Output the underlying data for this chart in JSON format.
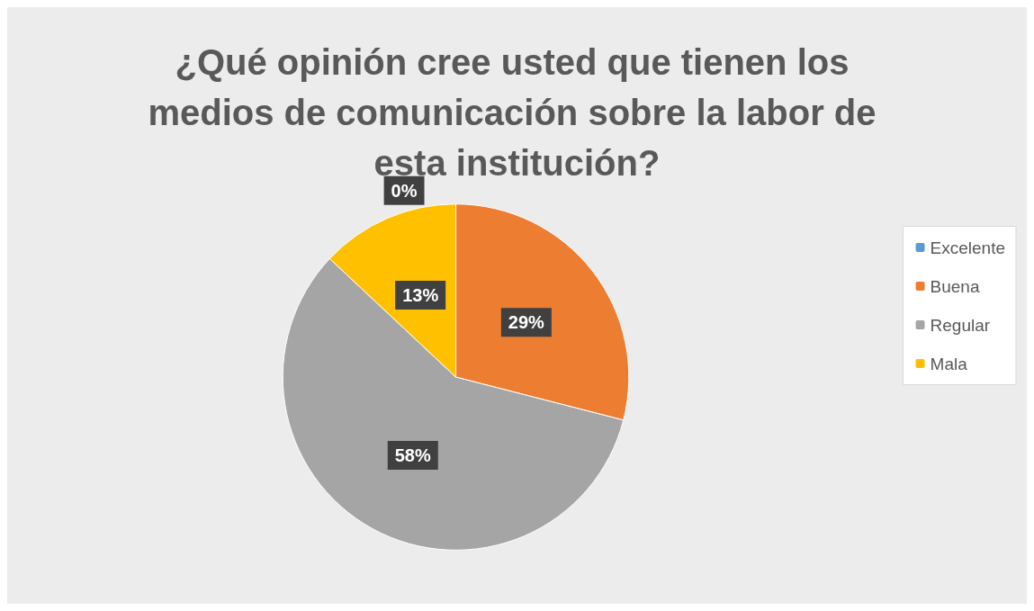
{
  "chart_data": {
    "type": "pie",
    "title": "¿Qué opinión cree usted que tienen los medios de comunicación sobre la labor de esta institución?",
    "categories": [
      "Excelente",
      "Buena",
      "Regular",
      "Mala"
    ],
    "values": [
      0,
      29,
      58,
      13
    ],
    "colors": [
      "#5b9bd5",
      "#ed7d31",
      "#a5a5a5",
      "#ffc000"
    ],
    "value_labels": [
      "0%",
      "29%",
      "58%",
      "13%"
    ],
    "legend": "right"
  }
}
